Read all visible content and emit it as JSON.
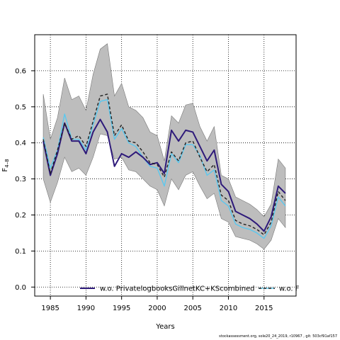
{
  "chart_data": {
    "type": "line",
    "xlabel": "Years",
    "ylabel": "F",
    "ylabel_sub": "4–8",
    "xlim": [
      1982.8,
      2019.5
    ],
    "ylim": [
      -0.025,
      0.7
    ],
    "xticks": [
      1985,
      1990,
      1995,
      2000,
      2005,
      2010,
      2015
    ],
    "yticks": [
      0.0,
      0.1,
      0.2,
      0.3,
      0.4,
      0.5,
      0.6
    ],
    "grid": true,
    "legend_position": "bottom",
    "x": [
      1984,
      1985,
      1986,
      1987,
      1988,
      1989,
      1990,
      1991,
      1992,
      1993,
      1994,
      1995,
      1996,
      1997,
      1998,
      1999,
      2000,
      2001,
      2002,
      2003,
      2004,
      2005,
      2006,
      2007,
      2008,
      2009,
      2010,
      2011,
      2012,
      2013,
      2014,
      2015,
      2016,
      2017,
      2018
    ],
    "band": {
      "upper": [
        0.535,
        0.41,
        0.47,
        0.58,
        0.52,
        0.53,
        0.49,
        0.59,
        0.66,
        0.675,
        0.53,
        0.565,
        0.5,
        0.49,
        0.47,
        0.43,
        0.42,
        0.35,
        0.475,
        0.455,
        0.505,
        0.51,
        0.445,
        0.405,
        0.445,
        0.31,
        0.3,
        0.25,
        0.24,
        0.23,
        0.215,
        0.195,
        0.23,
        0.355,
        0.33
      ],
      "lower": [
        0.3,
        0.235,
        0.29,
        0.36,
        0.32,
        0.33,
        0.31,
        0.36,
        0.425,
        0.42,
        0.355,
        0.36,
        0.325,
        0.32,
        0.3,
        0.28,
        0.27,
        0.225,
        0.3,
        0.27,
        0.31,
        0.32,
        0.28,
        0.245,
        0.26,
        0.19,
        0.18,
        0.14,
        0.135,
        0.13,
        0.12,
        0.105,
        0.13,
        0.19,
        0.165
      ]
    },
    "series": [
      {
        "name": "w.o. PrivatelogbooksGillnetKC+KScombined",
        "color": "#2e1a7a",
        "width": 2,
        "values": [
          0.405,
          0.31,
          0.37,
          0.455,
          0.405,
          0.405,
          0.37,
          0.43,
          0.465,
          0.43,
          0.335,
          0.37,
          0.36,
          0.375,
          0.36,
          0.34,
          0.345,
          0.315,
          0.435,
          0.405,
          0.435,
          0.43,
          0.39,
          0.35,
          0.38,
          0.285,
          0.265,
          0.21,
          0.2,
          0.19,
          0.175,
          0.155,
          0.195,
          0.28,
          0.26
        ]
      },
      {
        "name": "",
        "color": "#5bc8ef",
        "width": 1.4,
        "values": [
          0.415,
          0.33,
          0.38,
          0.48,
          0.41,
          0.41,
          0.38,
          0.45,
          0.515,
          0.52,
          0.41,
          0.44,
          0.4,
          0.39,
          0.36,
          0.335,
          0.33,
          0.28,
          0.37,
          0.345,
          0.395,
          0.395,
          0.365,
          0.31,
          0.325,
          0.24,
          0.225,
          0.175,
          0.165,
          0.16,
          0.15,
          0.135,
          0.17,
          0.25,
          0.225
        ]
      },
      {
        "name": "w.o. F",
        "color": "#222222",
        "width": 1.4,
        "dash": "4,3",
        "values": [
          0.41,
          0.315,
          0.38,
          0.455,
          0.41,
          0.42,
          0.39,
          0.46,
          0.53,
          0.535,
          0.42,
          0.45,
          0.405,
          0.4,
          0.375,
          0.345,
          0.34,
          0.305,
          0.375,
          0.35,
          0.4,
          0.405,
          0.36,
          0.32,
          0.34,
          0.255,
          0.24,
          0.185,
          0.175,
          0.17,
          0.16,
          0.145,
          0.18,
          0.265,
          0.24
        ]
      }
    ],
    "band_color": "#bdbdbd"
  },
  "footer": "stockassessment.org, sole20_24_2019, r10967 , git: 503cf91af157"
}
